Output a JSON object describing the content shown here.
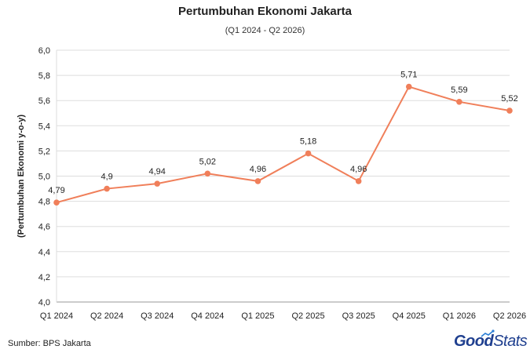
{
  "header": {
    "title": "Pertumbuhan Ekonomi Jakarta",
    "subtitle": "(Q1 2024 - Q2 2026)"
  },
  "footer": {
    "source": "Sumber: BPS Jakarta",
    "logo_good": "Good",
    "logo_stats": "Stats"
  },
  "colors": {
    "line": "#f07f5a",
    "grid": "#dddddd",
    "axis": "#999999"
  },
  "chart_data": {
    "type": "line",
    "title": "Pertumbuhan Ekonomi Jakarta",
    "subtitle": "(Q1 2024 - Q2 2026)",
    "xlabel": "",
    "ylabel": "(Pertumbuhan Ekonomi y-o-y)",
    "categories": [
      "Q1 2024",
      "Q2 2024",
      "Q3 2024",
      "Q4 2024",
      "Q1 2025",
      "Q2 2025",
      "Q3 2025",
      "Q4 2025",
      "Q1 2026",
      "Q2 2026"
    ],
    "values": [
      4.79,
      4.9,
      4.94,
      5.02,
      4.96,
      5.18,
      4.96,
      5.71,
      5.59,
      5.52
    ],
    "data_labels": [
      "4,79",
      "4,9",
      "4,94",
      "5,02",
      "4,96",
      "5,18",
      "4,96",
      "5,71",
      "5,59",
      "5,52"
    ],
    "ylim": [
      4.0,
      6.0
    ],
    "yticks": [
      "4,0",
      "4,2",
      "4,4",
      "4,6",
      "4,8",
      "5,0",
      "5,2",
      "5,4",
      "5,6",
      "5,8",
      "6,0"
    ],
    "grid": true,
    "legend": "none"
  }
}
